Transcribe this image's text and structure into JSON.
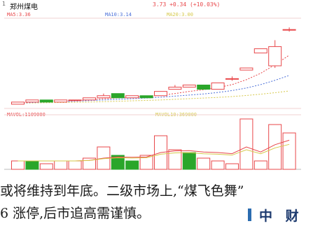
{
  "header": {
    "stock_name": "郑州煤电",
    "quote": "3.73 +0.34 (+10.03%)",
    "panel_marker": "1"
  },
  "indicators": {
    "ma5": "MA5:3.36",
    "ma10": "MA10:3.14",
    "ma20": "MA20:3.00",
    "vol": "MAVOL:1109000",
    "vol10": "MAVOL10:369000"
  },
  "colors": {
    "up": "#e8474a",
    "down": "#2aa62a",
    "ma5": "#e8474a",
    "ma10": "#4a6fd8",
    "ma20": "#d6c84a",
    "vol_ma": "#e8474a"
  },
  "chart_data": {
    "type": "candlestick",
    "candles": [
      {
        "open": 1,
        "close": 2,
        "high": 2,
        "low": 1,
        "direction": "up"
      },
      {
        "open": 2,
        "close": 3,
        "high": 3,
        "low": 2,
        "direction": "up"
      },
      {
        "open": 3,
        "close": 2,
        "high": 3,
        "low": 2,
        "direction": "down"
      },
      {
        "open": 2,
        "close": 3,
        "high": 3,
        "low": 2,
        "direction": "up"
      },
      {
        "open": 3,
        "close": 3,
        "high": 3,
        "low": 3,
        "direction": "up"
      },
      {
        "open": 3,
        "close": 4,
        "high": 4,
        "low": 3,
        "direction": "up"
      },
      {
        "open": 4,
        "close": 5,
        "high": 6,
        "low": 4,
        "direction": "up"
      },
      {
        "open": 6,
        "close": 4,
        "high": 6,
        "low": 4,
        "direction": "down"
      },
      {
        "open": 4,
        "close": 5,
        "high": 5,
        "low": 4,
        "direction": "up"
      },
      {
        "open": 5,
        "close": 4,
        "high": 5,
        "low": 4,
        "direction": "down"
      },
      {
        "open": 5,
        "close": 7,
        "high": 7,
        "low": 5,
        "direction": "up"
      },
      {
        "open": 8,
        "close": 9,
        "high": 10,
        "low": 8,
        "direction": "up"
      },
      {
        "open": 9,
        "close": 10,
        "high": 10,
        "low": 9,
        "direction": "up"
      },
      {
        "open": 10,
        "close": 8,
        "high": 10,
        "low": 8,
        "direction": "down"
      },
      {
        "open": 8,
        "close": 11,
        "high": 11,
        "low": 8,
        "direction": "up"
      },
      {
        "open": 13,
        "close": 13,
        "high": 14,
        "low": 12,
        "direction": "up"
      },
      {
        "open": 18,
        "close": 17,
        "high": 18,
        "low": 17,
        "direction": "up"
      },
      {
        "open": 25,
        "close": 27,
        "high": 27,
        "low": 25,
        "direction": "up"
      },
      {
        "open": 19,
        "close": 28,
        "high": 31,
        "low": 18,
        "direction": "up"
      },
      {
        "open": 36,
        "close": 36,
        "high": 37,
        "low": 35,
        "direction": "up"
      }
    ],
    "volumes": [
      {
        "value": 3,
        "direction": "up"
      },
      {
        "value": 3,
        "direction": "down"
      },
      {
        "value": 2,
        "direction": "up"
      },
      {
        "value": 3,
        "direction": "up"
      },
      {
        "value": 3,
        "direction": "up"
      },
      {
        "value": 4,
        "direction": "up"
      },
      {
        "value": 8,
        "direction": "up"
      },
      {
        "value": 5,
        "direction": "down"
      },
      {
        "value": 3,
        "direction": "down"
      },
      {
        "value": 5,
        "direction": "up"
      },
      {
        "value": 12,
        "direction": "up"
      },
      {
        "value": 7,
        "direction": "up"
      },
      {
        "value": 6,
        "direction": "down"
      },
      {
        "value": 4,
        "direction": "up"
      },
      {
        "value": 3,
        "direction": "up"
      },
      {
        "value": 2,
        "direction": "up"
      },
      {
        "value": 18,
        "direction": "up"
      },
      {
        "value": 3,
        "direction": "up"
      },
      {
        "value": 16,
        "direction": "up"
      },
      {
        "value": 13,
        "direction": "up"
      }
    ],
    "price_ylim": [
      0,
      40
    ],
    "vol_ylim": [
      0,
      19
    ],
    "ma_lines": {
      "ma5": [
        1.5,
        2,
        2.3,
        2.5,
        2.7,
        3,
        3.6,
        4,
        4.3,
        4.6,
        5.2,
        6,
        7,
        7.8,
        8.8,
        10.2,
        12.5,
        15.5,
        19.5,
        24
      ],
      "ma10": [
        1.5,
        1.8,
        2.0,
        2.2,
        2.4,
        2.7,
        3.0,
        3.3,
        3.6,
        3.9,
        4.3,
        4.8,
        5.3,
        5.8,
        6.5,
        7.4,
        8.6,
        10.2,
        12.2,
        14.5
      ],
      "ma20": [
        1.5,
        1.6,
        1.7,
        1.8,
        1.9,
        2.0,
        2.2,
        2.4,
        2.6,
        2.8,
        3.0,
        3.3,
        3.6,
        3.9,
        4.2,
        4.6,
        5.1,
        5.7,
        6.4,
        7.2
      ]
    },
    "vol_ma": [
      3,
      3,
      3,
      3,
      3,
      3.2,
      4,
      4.4,
      4.3,
      4.4,
      6,
      6.6,
      6.7,
      6.2,
      6,
      5.6,
      8,
      6.2,
      8.8,
      10.4
    ]
  },
  "article": {
    "line1": "或将维持到年底。二级市场上,“煤飞色舞”",
    "line2": "6 涨停,后市追高需谨慎。",
    "brand": "中 财"
  }
}
